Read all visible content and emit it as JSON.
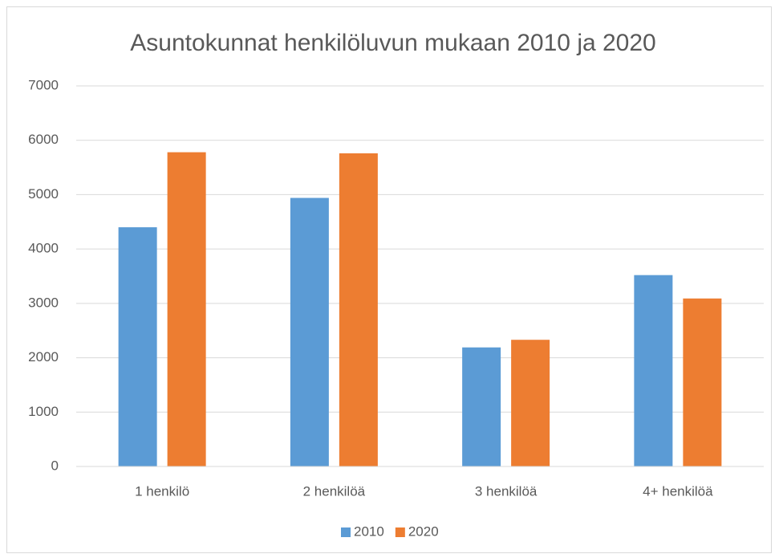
{
  "chart_data": {
    "type": "bar",
    "title": "Asuntokunnat henkilöluvun mukaan 2010 ja 2020",
    "categories": [
      "1 henkilö",
      "2 henkilöä",
      "3 henkilöä",
      "4+ henkilöä"
    ],
    "series": [
      {
        "name": "2010",
        "color": "#5b9bd5",
        "values": [
          4400,
          4940,
          2190,
          3520
        ]
      },
      {
        "name": "2020",
        "color": "#ed7d31",
        "values": [
          5780,
          5760,
          2330,
          3090
        ]
      }
    ],
    "ylim": [
      0,
      7000
    ],
    "yticks": [
      0,
      1000,
      2000,
      3000,
      4000,
      5000,
      6000,
      7000
    ],
    "grid": true,
    "legend": "bottom"
  }
}
